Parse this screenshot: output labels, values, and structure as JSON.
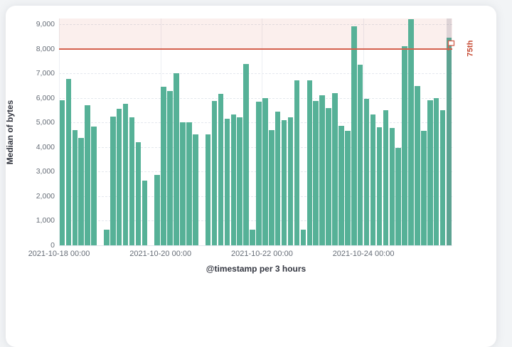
{
  "page": {
    "background_color": "#f2f4f6",
    "card_color": "#ffffff"
  },
  "chart_data": {
    "type": "bar",
    "title": "",
    "y_axis_title": "Median of bytes",
    "x_axis_title": "@timestamp per 3 hours",
    "bucket_interval_hours": 3,
    "slot_count": 62,
    "x_ticks": [
      {
        "label": "2021-10-18 00:00",
        "slot": 0
      },
      {
        "label": "2021-10-20 00:00",
        "slot": 16
      },
      {
        "label": "2021-10-22 00:00",
        "slot": 32
      },
      {
        "label": "2021-10-24 00:00",
        "slot": 48
      }
    ],
    "y_ticks": [
      0,
      1000,
      2000,
      3000,
      4000,
      5000,
      6000,
      7000,
      8000,
      9000
    ],
    "y_tick_labels": [
      "0",
      "1,000",
      "2,000",
      "3,000",
      "4,000",
      "5,000",
      "6,000",
      "7,000",
      "8,000",
      "9,000"
    ],
    "y_max": 9240,
    "values": [
      5900,
      6780,
      4700,
      4380,
      5700,
      4850,
      null,
      650,
      5250,
      5550,
      5750,
      5200,
      4190,
      2650,
      null,
      2860,
      6450,
      6300,
      7000,
      5000,
      5000,
      4530,
      null,
      4530,
      5880,
      6170,
      5150,
      5320,
      5200,
      7400,
      650,
      5850,
      6000,
      4690,
      5450,
      5100,
      5200,
      6730,
      650,
      6730,
      5880,
      6120,
      5590,
      6190,
      4860,
      4650,
      8930,
      7360,
      5980,
      5330,
      4820,
      5500,
      4790,
      3960,
      8110,
      9200,
      6490,
      4670,
      5910,
      6000,
      5500,
      8470
    ],
    "threshold": {
      "value": 8000,
      "label": "75th"
    },
    "partial_bucket_index": 61,
    "legend_position": "none",
    "grid": true,
    "colors": {
      "bar": "#56b197",
      "threshold_line": "#d4604d",
      "threshold_fill": "rgba(211,96,77,0.10)",
      "annotation_text": "#c64a33",
      "partial_bucket_fill": "rgba(118,112,132,0.22)",
      "axis_text": "#656c76",
      "axis_title_text": "#343741",
      "gridline": "#e4e8ee"
    }
  }
}
